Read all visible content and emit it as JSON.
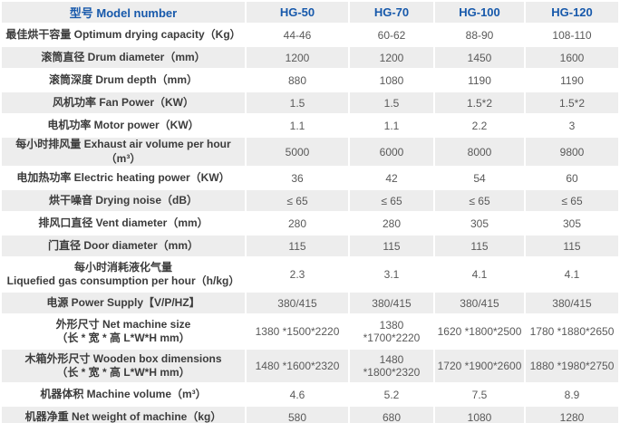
{
  "table": {
    "header": {
      "label": "型号 Model number",
      "models": [
        "HG-50",
        "HG-70",
        "HG-100",
        "HG-120"
      ]
    },
    "rows": [
      {
        "label": "最佳烘干容量 Optimum drying capacity（Kg）",
        "values": [
          "44-46",
          "60-62",
          "88-90",
          "108-110"
        ]
      },
      {
        "label": "滚筒直径 Drum diameter（mm）",
        "values": [
          "1200",
          "1200",
          "1450",
          "1600"
        ]
      },
      {
        "label": "滚筒深度 Drum depth（mm）",
        "values": [
          "880",
          "1080",
          "1190",
          "1190"
        ]
      },
      {
        "label": "风机功率 Fan Power（KW）",
        "values": [
          "1.5",
          "1.5",
          "1.5*2",
          "1.5*2"
        ]
      },
      {
        "label": "电机功率 Motor power（KW）",
        "values": [
          "1.1",
          "1.1",
          "2.2",
          "3"
        ]
      },
      {
        "label": "每小时排风量 Exhaust air volume per hour（m³）",
        "values": [
          "5000",
          "6000",
          "8000",
          "9800"
        ]
      },
      {
        "label": "电加热功率 Electric heating power（KW）",
        "values": [
          "36",
          "42",
          "54",
          "60"
        ]
      },
      {
        "label": "烘干噪音 Drying noise（dB）",
        "values": [
          "≤ 65",
          "≤ 65",
          "≤ 65",
          "≤ 65"
        ]
      },
      {
        "label": "排风口直径 Vent diameter（mm）",
        "values": [
          "280",
          "280",
          "305",
          "305"
        ]
      },
      {
        "label": "门直径 Door diameter（mm）",
        "values": [
          "115",
          "115",
          "115",
          "115"
        ]
      },
      {
        "label": "每小时消耗液化气量\nLiquefied gas consumption per hour（h/kg）",
        "values": [
          "2.3",
          "3.1",
          "4.1",
          "4.1"
        ]
      },
      {
        "label": "电源 Power Supply【V/P/HZ】",
        "values": [
          "380/415",
          "380/415",
          "380/415",
          "380/415"
        ]
      },
      {
        "label": "外形尺寸 Net machine size\n（长 * 宽 * 高 L*W*H mm）",
        "values": [
          "1380 *1500*2220",
          "1380 *1700*2220",
          "1620 *1800*2500",
          "1780 *1880*2650"
        ]
      },
      {
        "label": "木箱外形尺寸 Wooden box dimensions\n（长 * 宽 * 高 L*W*H mm）",
        "values": [
          "1480 *1600*2320",
          "1480 *1800*2320",
          "1720 *1900*2600",
          "1880 *1980*2750"
        ]
      },
      {
        "label": "机器体积 Machine volume（m³）",
        "values": [
          "4.6",
          "5.2",
          "7.5",
          "8.9"
        ]
      },
      {
        "label": "机器净重 Net weight of machine（kg）",
        "values": [
          "580",
          "680",
          "1080",
          "1280"
        ]
      }
    ]
  },
  "colors": {
    "accent_blue": "#1759ab",
    "row_shade_gray": "#ededed",
    "label_text": "#3c3c3c",
    "value_text": "#595959",
    "background": "#ffffff"
  }
}
